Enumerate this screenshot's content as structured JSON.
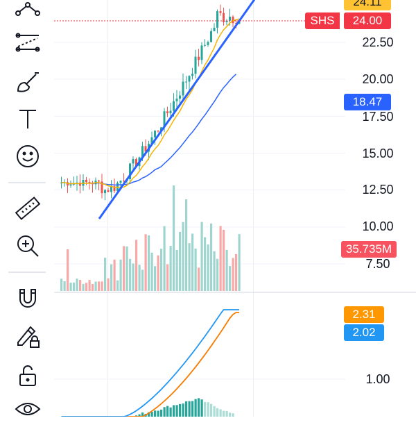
{
  "toolbar": {
    "tools": [
      {
        "name": "pattern-tool-icon"
      },
      {
        "name": "parallel-lines-tool-icon"
      },
      {
        "name": "brush-tool-icon"
      },
      {
        "name": "text-tool-icon"
      },
      {
        "name": "emoji-tool-icon"
      },
      {
        "name": "ruler-tool-icon"
      },
      {
        "name": "zoom-in-tool-icon"
      },
      {
        "name": "magnet-tool-icon"
      },
      {
        "name": "lock-drawing-tool-icon"
      },
      {
        "name": "unlock-tool-icon"
      },
      {
        "name": "eye-tool-icon"
      }
    ]
  },
  "price_axis": {
    "labels": [
      "22.50",
      "20.00",
      "17.50",
      "15.00",
      "12.50",
      "10.00",
      "7.50"
    ]
  },
  "indicator_axis": {
    "labels": [
      "1.00"
    ]
  },
  "tags": {
    "top_price": "24.11",
    "last_symbol": "SHS",
    "last_price": "24.00",
    "ma_value": "18.47",
    "volume": "35.735M",
    "macd_line": "2.31",
    "signal_line": "2.02"
  },
  "colors": {
    "up": "#26a69a",
    "down": "#ef5350",
    "trendline": "#2962ff",
    "ma_short": "#f5b400",
    "ma_long": "#2962ff",
    "macd": "#f57c00",
    "signal": "#2196f3",
    "tag_orange": "#ff9800",
    "tag_blue": "#2962ff",
    "tag_red": "#f23645",
    "tag_volume": "#f7525f"
  }
}
